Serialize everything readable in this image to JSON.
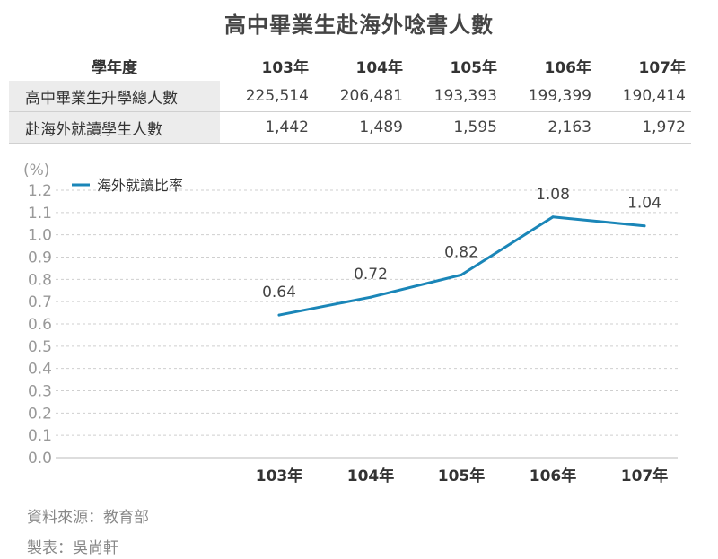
{
  "title": "高中畢業生赴海外唸書人數",
  "table": {
    "corner": "學年度",
    "columns": [
      "103年",
      "104年",
      "105年",
      "106年",
      "107年"
    ],
    "rows": [
      {
        "label": "高中畢業生升學總人數",
        "values": [
          "225,514",
          "206,481",
          "193,393",
          "199,399",
          "190,414"
        ]
      },
      {
        "label": "赴海外就讀學生人數",
        "values": [
          "1,442",
          "1,489",
          "1,595",
          "2,163",
          "1,972"
        ]
      }
    ]
  },
  "chart_data": {
    "type": "line",
    "unit_label": "(%)",
    "categories": [
      "103年",
      "104年",
      "105年",
      "106年",
      "107年"
    ],
    "series": [
      {
        "name": "海外就讀比率",
        "values": [
          0.64,
          0.72,
          0.82,
          1.08,
          1.04
        ],
        "labels": [
          "0.64",
          "0.72",
          "0.82",
          "1.08",
          "1.04"
        ],
        "color": "#1a86b8"
      }
    ],
    "ylim": [
      0,
      1.2
    ],
    "yticks": [
      "0.0",
      "0.1",
      "0.2",
      "0.3",
      "0.4",
      "0.5",
      "0.6",
      "0.7",
      "0.8",
      "0.9",
      "1.0",
      "1.1",
      "1.2"
    ],
    "grid": true,
    "legend": "top-left"
  },
  "footer": {
    "source": "資料來源：教育部",
    "author": "製表：吳尚軒"
  }
}
